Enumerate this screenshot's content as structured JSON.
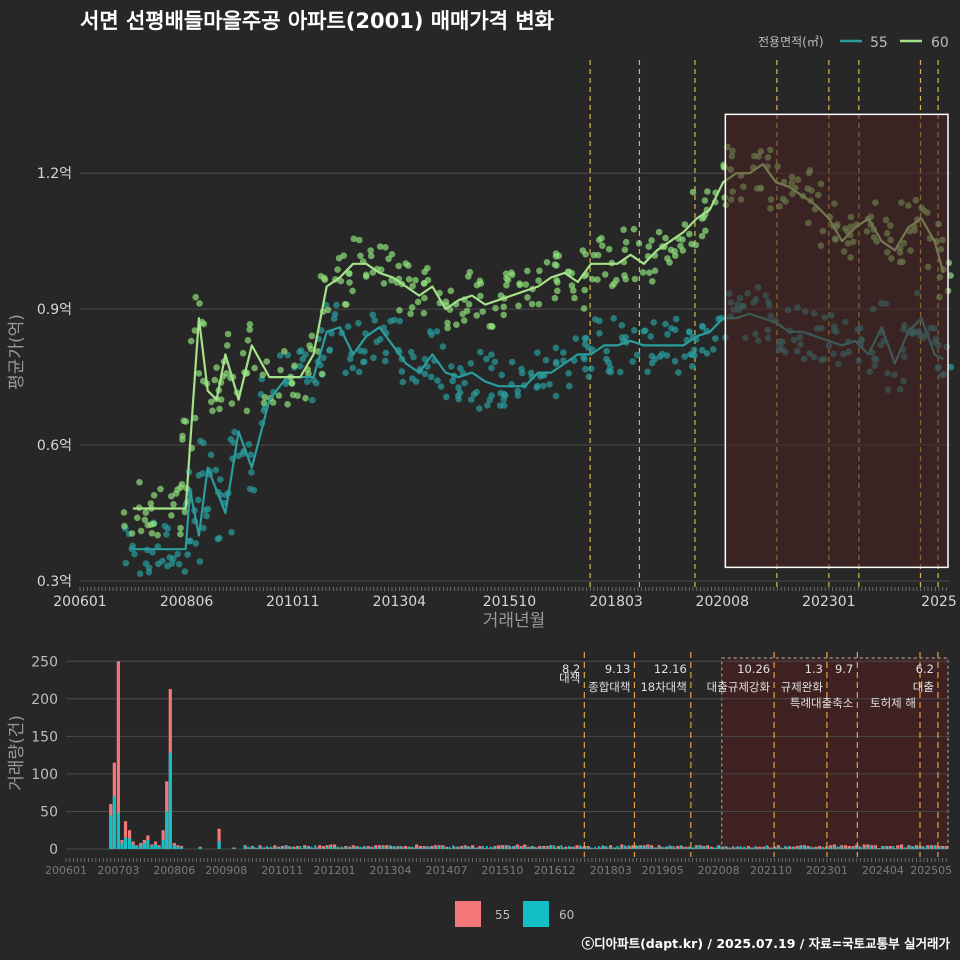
{
  "title": "서면 선평배들마을주공 아파트(2001) 매매가격 변화",
  "credit": "ⓒ디아파트(dapt.kr) / 2025.07.19 / 자료=국토교통부 실거래가",
  "colors": {
    "background": "#272727",
    "grid": "#4a4a4a",
    "series55_line": "#2a9d9c",
    "series60_line": "#a6e28a",
    "series60_point": "#8fe07a",
    "bar55": "#f4777a",
    "bar60": "#12bfc4",
    "policy_line": "#d9b84a",
    "policy_line_lower": "#e6a23c",
    "highlight_fill": "#4a2020",
    "highlight_border": "#ffffff",
    "outlier": "#e02020"
  },
  "chart_data": [
    {
      "type": "line",
      "name": "price",
      "xlabel": "거래년월",
      "ylabel": "평균가(억)",
      "ytick_labels": [
        "0.3억",
        "0.6억",
        "0.9억",
        "1.2억"
      ],
      "ytick_values": [
        0.3,
        0.6,
        0.9,
        1.2
      ],
      "ylim": [
        0.28,
        1.45
      ],
      "xlim": [
        2006.0,
        2025.75
      ],
      "xtick_labels": [
        "200601",
        "200806",
        "201011",
        "201304",
        "201510",
        "201803",
        "202008",
        "202301",
        "2025"
      ],
      "xtick_values": [
        2006.0,
        2008.42,
        2010.83,
        2013.25,
        2015.75,
        2018.17,
        2020.58,
        2023.0,
        2025.5
      ],
      "legend_title": "전용면적(㎡)",
      "legend_position": "top-right",
      "grid": true,
      "series": [
        {
          "name": "55",
          "x": [
            2007.2,
            2007.5,
            2007.8,
            2008.1,
            2008.4,
            2008.5,
            2008.7,
            2008.9,
            2009.1,
            2009.3,
            2009.6,
            2009.9,
            2010.3,
            2010.7,
            2011.0,
            2011.3,
            2011.6,
            2011.9,
            2012.2,
            2012.5,
            2012.8,
            2013.1,
            2013.4,
            2013.7,
            2014.0,
            2014.3,
            2014.6,
            2014.9,
            2015.2,
            2015.5,
            2015.8,
            2016.1,
            2016.4,
            2016.7,
            2017.0,
            2017.3,
            2017.6,
            2017.9,
            2018.2,
            2018.5,
            2018.8,
            2019.1,
            2019.4,
            2019.7,
            2020.0,
            2020.3,
            2020.6,
            2020.9,
            2021.2,
            2021.5,
            2021.8,
            2022.1,
            2022.4,
            2022.7,
            2023.0,
            2023.3,
            2023.6,
            2023.9,
            2024.2,
            2024.5,
            2024.8,
            2025.1,
            2025.4,
            2025.6
          ],
          "values": [
            0.37,
            0.37,
            0.37,
            0.37,
            0.37,
            0.5,
            0.4,
            0.55,
            0.5,
            0.45,
            0.63,
            0.55,
            0.7,
            0.75,
            0.75,
            0.75,
            0.85,
            0.86,
            0.8,
            0.84,
            0.86,
            0.82,
            0.78,
            0.76,
            0.8,
            0.76,
            0.75,
            0.76,
            0.74,
            0.73,
            0.73,
            0.73,
            0.76,
            0.76,
            0.78,
            0.8,
            0.8,
            0.82,
            0.82,
            0.83,
            0.82,
            0.82,
            0.82,
            0.82,
            0.84,
            0.85,
            0.88,
            0.88,
            0.89,
            0.88,
            0.87,
            0.85,
            0.85,
            0.84,
            0.83,
            0.82,
            0.83,
            0.8,
            0.86,
            0.78,
            0.85,
            0.88,
            0.8,
            0.79
          ]
        },
        {
          "name": "60",
          "x": [
            2007.2,
            2007.5,
            2007.8,
            2008.1,
            2008.4,
            2008.5,
            2008.7,
            2008.9,
            2009.1,
            2009.3,
            2009.6,
            2009.9,
            2010.3,
            2010.7,
            2011.0,
            2011.3,
            2011.6,
            2011.9,
            2012.2,
            2012.5,
            2012.8,
            2013.1,
            2013.4,
            2013.7,
            2014.0,
            2014.3,
            2014.6,
            2014.9,
            2015.2,
            2015.5,
            2015.8,
            2016.1,
            2016.4,
            2016.7,
            2017.0,
            2017.3,
            2017.6,
            2017.9,
            2018.2,
            2018.5,
            2018.8,
            2019.1,
            2019.4,
            2019.7,
            2020.0,
            2020.3,
            2020.6,
            2020.9,
            2021.2,
            2021.5,
            2021.8,
            2022.1,
            2022.4,
            2022.7,
            2023.0,
            2023.3,
            2023.6,
            2023.9,
            2024.2,
            2024.5,
            2024.8,
            2025.1,
            2025.4,
            2025.6
          ],
          "values": [
            0.46,
            0.46,
            0.46,
            0.46,
            0.46,
            0.6,
            0.88,
            0.72,
            0.7,
            0.8,
            0.7,
            0.82,
            0.75,
            0.75,
            0.75,
            0.8,
            0.95,
            0.97,
            1.0,
            1.0,
            0.98,
            0.97,
            0.95,
            0.93,
            0.95,
            0.9,
            0.92,
            0.93,
            0.91,
            0.92,
            0.93,
            0.94,
            0.95,
            0.97,
            0.98,
            0.96,
            1.0,
            1.0,
            1.0,
            1.02,
            1.0,
            1.03,
            1.05,
            1.07,
            1.1,
            1.12,
            1.18,
            1.2,
            1.2,
            1.22,
            1.18,
            1.17,
            1.15,
            1.13,
            1.1,
            1.05,
            1.08,
            1.1,
            1.05,
            1.03,
            1.08,
            1.1,
            1.05,
            0.98
          ]
        }
      ],
      "highlight_range": {
        "x": [
          2020.65,
          2025.75
        ],
        "y": [
          0.33,
          1.33
        ]
      }
    },
    {
      "type": "bar",
      "name": "volume",
      "ylabel": "거래량(건)",
      "ytick_values": [
        0,
        50,
        100,
        150,
        200,
        250
      ],
      "ytick_labels": [
        "0",
        "50",
        "100",
        "150",
        "200",
        "250"
      ],
      "ylim": [
        -8,
        265
      ],
      "xlim": [
        2006.0,
        2025.75
      ],
      "xtick_labels": [
        "200601",
        "200703",
        "200806",
        "200908",
        "201011",
        "201201",
        "201304",
        "201407",
        "201510",
        "201612",
        "201803",
        "201905",
        "202008",
        "202110",
        "202301",
        "202404",
        "202505"
      ],
      "xtick_values": [
        2006.0,
        2007.17,
        2008.42,
        2009.58,
        2010.83,
        2012.0,
        2013.25,
        2014.5,
        2015.75,
        2016.92,
        2018.17,
        2019.33,
        2020.58,
        2021.75,
        2023.0,
        2024.25,
        2025.33
      ],
      "legend_position": "bottom",
      "series": [
        {
          "name": "55",
          "x": [
            2007.0,
            2007.08,
            2007.17,
            2007.25,
            2007.33,
            2007.42,
            2007.5,
            2007.58,
            2007.67,
            2007.75,
            2007.83,
            2007.92,
            2008.0,
            2008.08,
            2008.17,
            2008.25,
            2008.33,
            2008.42,
            2008.5,
            2008.58,
            2009.0,
            2009.42,
            2009.75
          ],
          "values": [
            60,
            115,
            250,
            12,
            37,
            25,
            10,
            5,
            8,
            12,
            18,
            6,
            10,
            5,
            25,
            90,
            213,
            8,
            5,
            4,
            3,
            27,
            2
          ]
        },
        {
          "name": "60",
          "x": [
            2007.0,
            2007.08,
            2007.17,
            2007.25,
            2007.33,
            2007.42,
            2007.5,
            2007.58,
            2007.67,
            2007.75,
            2007.83,
            2007.92,
            2008.0,
            2008.08,
            2008.17,
            2008.25,
            2008.33,
            2008.42,
            2008.5,
            2008.58,
            2009.0,
            2009.42,
            2009.75
          ],
          "values": [
            45,
            70,
            48,
            8,
            15,
            14,
            6,
            4,
            5,
            8,
            12,
            4,
            6,
            3,
            12,
            50,
            128,
            5,
            3,
            2,
            2,
            10,
            1
          ]
        }
      ],
      "annotations": [
        {
          "date": "8.2",
          "label": "대책",
          "x": 2017.58
        },
        {
          "date": "9.13",
          "label": "종합대책",
          "x": 2018.7
        },
        {
          "date": "12.16",
          "label": "18차대책",
          "x": 2019.96
        },
        {
          "date": "10.26",
          "label": "대출규제강화",
          "x": 2021.82
        },
        {
          "date": "1.3",
          "label": "규제완화",
          "x": 2023.0
        },
        {
          "date": "9.7",
          "label": "특례대출축소",
          "x": 2023.68
        },
        {
          "date": "",
          "label": "토허제 해",
          "x": 2025.08
        },
        {
          "date": "6.2",
          "label": "대출",
          "x": 2025.48
        }
      ],
      "highlight_range": {
        "x": [
          2020.65,
          2025.75
        ]
      }
    }
  ]
}
